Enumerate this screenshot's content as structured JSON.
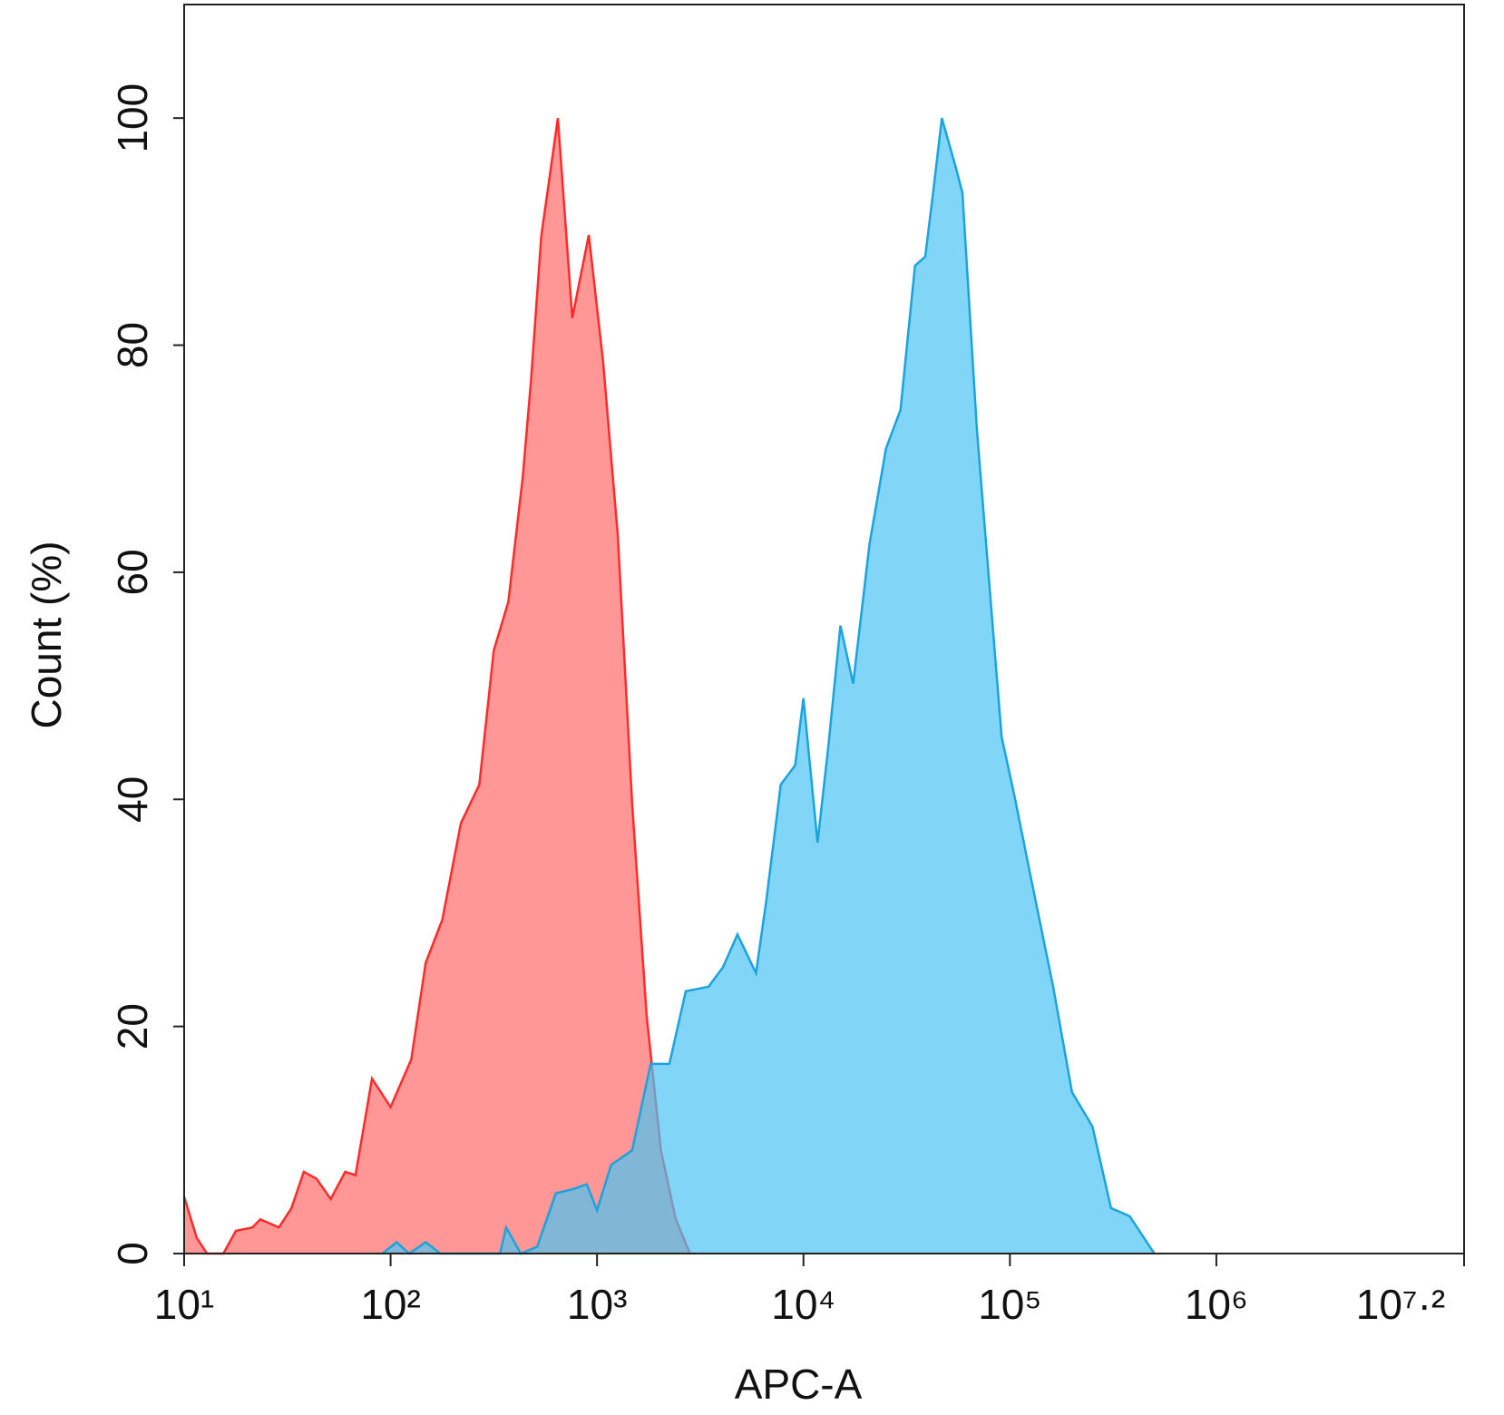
{
  "chart_data": {
    "type": "area",
    "x_label": "APC-A",
    "y_label": "Count  (%)",
    "log_x": true,
    "xlim": [
      10,
      15848932
    ],
    "xticks": [
      {
        "value": 10,
        "label": "10¹"
      },
      {
        "value": 100,
        "label": "10²"
      },
      {
        "value": 1000,
        "label": "10³"
      },
      {
        "value": 10000,
        "label": "10⁴"
      },
      {
        "value": 100000,
        "label": "10⁵"
      },
      {
        "value": 1000000,
        "label": "10⁶"
      },
      {
        "value": 15848932,
        "label": "10⁷·²"
      }
    ],
    "ylim": [
      0,
      110
    ],
    "yticks": [
      0,
      20,
      40,
      60,
      80,
      100
    ],
    "series": [
      {
        "color": "#ff2a2a",
        "fill": "#ff6b6b",
        "x": [
          10,
          11.5,
          12.9,
          15.5,
          17.8,
          21.4,
          23.4,
          28.8,
          33.1,
          38.0,
          43.7,
          51.3,
          60.3,
          67.6,
          81.3,
          100,
          126,
          148,
          178,
          219,
          269,
          316,
          372,
          437,
          479,
          537,
          646,
          759,
          912,
          1070,
          1260,
          1480,
          1740,
          2040,
          2400,
          2820
        ],
        "values": [
          5,
          1.4,
          0,
          0,
          2,
          2.3,
          3,
          2.3,
          4,
          7.2,
          6.6,
          4.8,
          7.2,
          6.9,
          15.4,
          12.9,
          17.1,
          25.6,
          29.4,
          37.9,
          41.3,
          53.1,
          57.4,
          68.4,
          76.9,
          89.6,
          100,
          82.4,
          89.7,
          78.6,
          63.3,
          39.6,
          20.9,
          9.1,
          3.1,
          0
        ]
      },
      {
        "color": "#1aa3dd",
        "fill": "#4cc3f2",
        "x": [
          91.2,
          107,
          123,
          148,
          174,
          339,
          363,
          427,
          513,
          631,
          776,
          891,
          1000,
          1170,
          1480,
          1820,
          2240,
          2690,
          3470,
          4070,
          4790,
          5890,
          6610,
          7760,
          9120,
          10000,
          11700,
          13200,
          15100,
          17400,
          20900,
          25100,
          29500,
          34700,
          38900,
          42700,
          46800,
          55000,
          58900,
          69200,
          91200,
          105000,
          126000,
          162000,
          200000,
          251000,
          309000,
          380000,
          501000
        ],
        "values": [
          0,
          1,
          0,
          1,
          0,
          0,
          2.3,
          0,
          0.6,
          5.3,
          5.7,
          6.1,
          3.8,
          7.8,
          9.1,
          16.7,
          16.7,
          23.1,
          23.5,
          25.2,
          28.1,
          24.7,
          31.1,
          41.3,
          43.0,
          48.9,
          36.2,
          44.7,
          55.3,
          50.2,
          62.5,
          70.9,
          74.3,
          87.0,
          87.8,
          93.8,
          100,
          95.5,
          93.4,
          72.6,
          45.5,
          40.4,
          33.2,
          23.5,
          14.2,
          11.2,
          4.0,
          3.3,
          0
        ]
      }
    ]
  }
}
